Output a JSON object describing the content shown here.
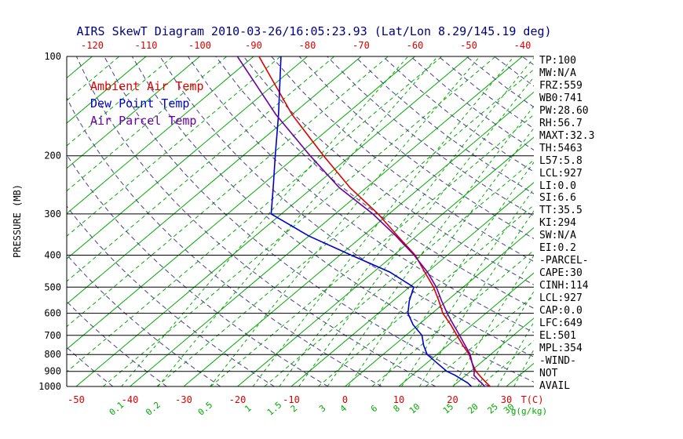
{
  "title": "AIRS SkewT Diagram 2010-03-26/16:05:23.93 (Lat/Lon 8.29/145.19 deg)",
  "legend": [
    "Ambient Air Temp",
    "Dew Point Temp",
    "Air Parcel Temp"
  ],
  "colors": {
    "isotherm": "#00aa00",
    "mixing": "#00aa00",
    "adiabat": "#483d8b",
    "ambient": "#dd0000",
    "dewpoint": "#0000cc",
    "parcel": "#6a00a8",
    "axis": "#000000",
    "title": "#000080",
    "temp_label": "#dd0000",
    "mixing_label": "#00aa00"
  },
  "stats_panel": {
    "items": [
      "TP:100",
      "MW:N/A",
      "FRZ:559",
      "WB0:741",
      "PW:28.60",
      "RH:56.7",
      "MAXT:32.3",
      "TH:5463",
      "L57:5.8",
      "LCL:927",
      "LI:0.0",
      "SI:6.6",
      "TT:35.5",
      "KI:294",
      "SW:N/A",
      "EI:0.2",
      "-PARCEL-",
      "CAPE:30",
      "CINH:114",
      "LCL:927",
      "CAP:0.0",
      "LFC:649",
      "EL:501",
      "MPL:354",
      "-WIND-",
      "NOT",
      "AVAIL"
    ]
  },
  "chart_data": {
    "type": "line",
    "title": "AIRS SkewT Diagram 2010-03-26/16:05:23.93 (Lat/Lon 8.29/145.19 deg)",
    "y_axis": {
      "label": "PRESSURE (MB)",
      "scale": "log",
      "levels_mb": [
        100,
        200,
        300,
        400,
        500,
        600,
        700,
        800,
        900,
        1000
      ],
      "range": [
        100,
        1000
      ]
    },
    "x_axis": {
      "label": "T(C)",
      "mixing_label": "g(g/kg)",
      "top_labels_c": [
        -120,
        -110,
        -100,
        -90,
        -80,
        -70,
        -60,
        -50,
        -40
      ],
      "bottom_labels_c": [
        -50,
        -40,
        -30,
        -20,
        -10,
        0,
        10,
        20,
        30
      ]
    },
    "isotherms": {
      "step_c": 10,
      "solid_from_c": -130,
      "solid_to_c": 40,
      "dashed_from_c": -135,
      "dashed_to_c": 35
    },
    "mixing_ratio_g_kg": [
      0.1,
      0.2,
      0.5,
      1,
      1.5,
      2,
      3,
      4,
      6,
      8,
      10,
      15,
      20,
      25,
      30
    ],
    "dry_adiabats_k": {
      "from": 220,
      "to": 450,
      "step": 10
    },
    "series": [
      {
        "name": "Ambient Air Temp",
        "color_key": "ambient",
        "points_p_t": [
          [
            1000,
            27
          ],
          [
            975,
            25.5
          ],
          [
            950,
            24
          ],
          [
            925,
            22.5
          ],
          [
            900,
            21
          ],
          [
            850,
            18.5
          ],
          [
            800,
            16
          ],
          [
            750,
            12.8
          ],
          [
            700,
            9.5
          ],
          [
            650,
            6
          ],
          [
            600,
            2
          ],
          [
            550,
            -1.5
          ],
          [
            500,
            -5.5
          ],
          [
            450,
            -10.5
          ],
          [
            400,
            -16
          ],
          [
            350,
            -23.5
          ],
          [
            300,
            -32
          ],
          [
            250,
            -43
          ],
          [
            200,
            -55
          ],
          [
            150,
            -70
          ],
          [
            100,
            -89
          ]
        ]
      },
      {
        "name": "Dew Point Temp",
        "color_key": "dewpoint",
        "points_p_t": [
          [
            1000,
            23.5
          ],
          [
            975,
            22
          ],
          [
            950,
            20
          ],
          [
            925,
            18
          ],
          [
            900,
            15.6
          ],
          [
            850,
            12
          ],
          [
            800,
            8.2
          ],
          [
            750,
            5.5
          ],
          [
            700,
            3
          ],
          [
            650,
            -1
          ],
          [
            600,
            -4.5
          ],
          [
            550,
            -7
          ],
          [
            500,
            -9.2
          ],
          [
            450,
            -17
          ],
          [
            400,
            -27.9
          ],
          [
            350,
            -40
          ],
          [
            300,
            -51.9
          ],
          [
            250,
            -57.3
          ],
          [
            200,
            -64
          ],
          [
            150,
            -72.5
          ],
          [
            100,
            -84.9
          ]
        ]
      },
      {
        "name": "Air Parcel Temp",
        "color_key": "parcel",
        "points_p_t": [
          [
            1000,
            26
          ],
          [
            950,
            23
          ],
          [
            925,
            21.5
          ],
          [
            900,
            20.7
          ],
          [
            850,
            18.5
          ],
          [
            800,
            16.2
          ],
          [
            750,
            13.2
          ],
          [
            700,
            10
          ],
          [
            650,
            6.5
          ],
          [
            600,
            2.8
          ],
          [
            550,
            -1
          ],
          [
            500,
            -5
          ],
          [
            450,
            -10
          ],
          [
            400,
            -16.2
          ],
          [
            350,
            -23.8
          ],
          [
            300,
            -33
          ],
          [
            250,
            -45
          ],
          [
            200,
            -57.5
          ],
          [
            150,
            -73
          ],
          [
            100,
            -93
          ]
        ]
      }
    ]
  }
}
